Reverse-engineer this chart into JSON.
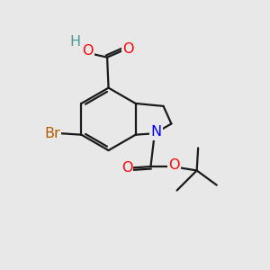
{
  "bg_color": "#e8e8e8",
  "bond_color": "#1a1a1a",
  "bond_width": 1.6,
  "atom_colors": {
    "O": "#ff0000",
    "N": "#0000ff",
    "Br": "#b35a00",
    "H": "#4a9a9a",
    "C": "#1a1a1a"
  },
  "font_size": 10.5
}
